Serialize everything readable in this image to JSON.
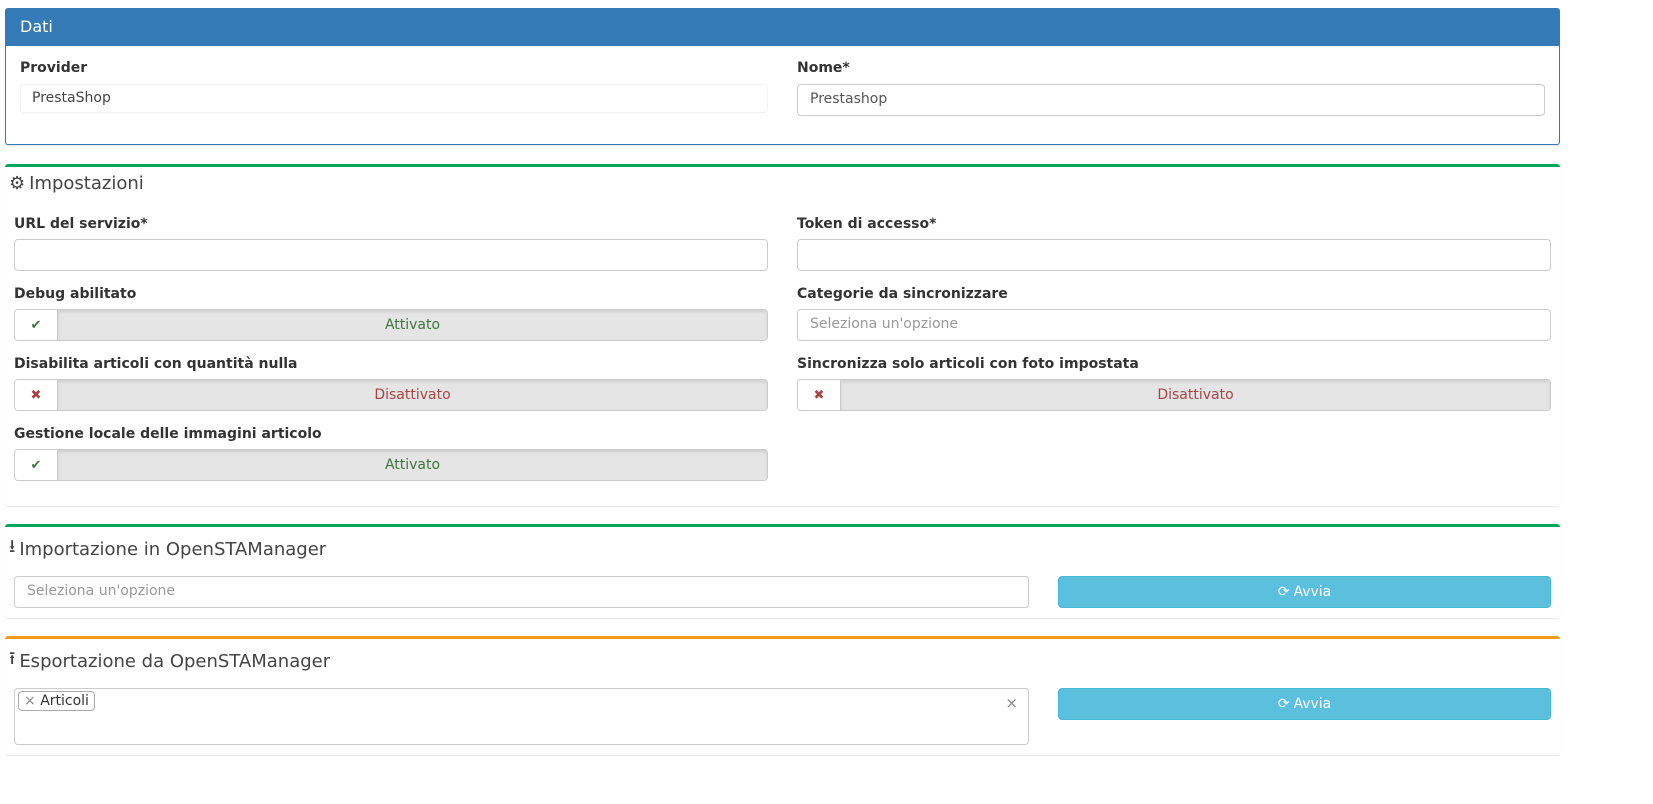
{
  "dati": {
    "title": "Dati",
    "provider_label": "Provider",
    "provider_value": "PrestaShop",
    "nome_label": "Nome*",
    "nome_value": "Prestashop"
  },
  "impostazioni": {
    "title": "Impostazioni",
    "icon": "gears-icon",
    "url_label": "URL del servizio*",
    "url_value": "",
    "token_label": "Token di accesso*",
    "token_value": "",
    "debug_label": "Debug abilitato",
    "debug_state": "Attivato",
    "categorie_label": "Categorie da sincronizzare",
    "categorie_placeholder": "Seleziona un'opzione",
    "disabilita_label": "Disabilita articoli con quantità nulla",
    "disabilita_state": "Disattivato",
    "foto_label": "Sincronizza solo articoli con foto impostata",
    "foto_state": "Disattivato",
    "immagini_label": "Gestione locale delle immagini articolo",
    "immagini_state": "Attivato"
  },
  "importazione": {
    "title": "Importazione in OpenSTAManager",
    "placeholder": "Seleziona un'opzione",
    "button": "Avvia"
  },
  "esportazione": {
    "title": "Esportazione da OpenSTAManager",
    "selected": [
      "Articoli"
    ],
    "button": "Avvia"
  },
  "colors": {
    "primary": "#337ab7",
    "success": "#00a65a",
    "warning": "#f39c12",
    "info": "#5bc0de",
    "on": "#3c763d",
    "off": "#a94442"
  }
}
